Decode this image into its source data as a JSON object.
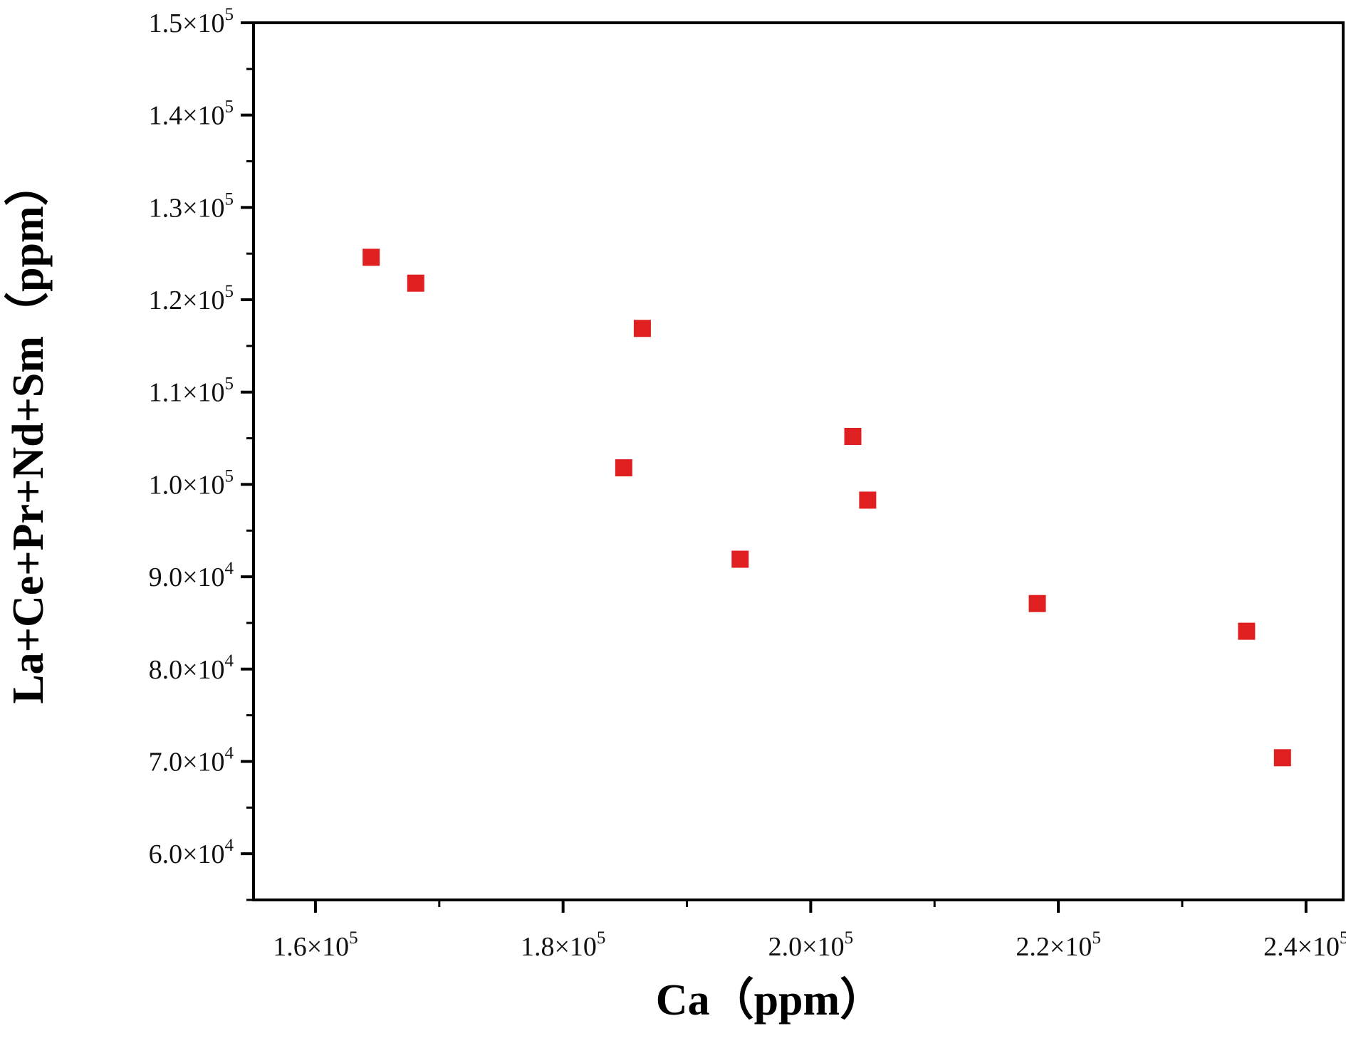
{
  "chart_data": {
    "type": "scatter",
    "xlabel": "Ca（ppm）",
    "ylabel": "La+Ce+Pr+Nd+Sm（ppm）",
    "xlim": [
      155000,
      243000
    ],
    "ylim": [
      55000,
      150000
    ],
    "x_ticks": [
      {
        "value": 160000,
        "mantissa": "1.6×10",
        "exp": "5"
      },
      {
        "value": 180000,
        "mantissa": "1.8×10",
        "exp": "5"
      },
      {
        "value": 200000,
        "mantissa": "2.0×10",
        "exp": "5"
      },
      {
        "value": 220000,
        "mantissa": "2.2×10",
        "exp": "5"
      },
      {
        "value": 240000,
        "mantissa": "2.4×10",
        "exp": "5"
      }
    ],
    "y_ticks": [
      {
        "value": 60000,
        "mantissa": "6.0×10",
        "exp": "4"
      },
      {
        "value": 70000,
        "mantissa": "7.0×10",
        "exp": "4"
      },
      {
        "value": 80000,
        "mantissa": "8.0×10",
        "exp": "4"
      },
      {
        "value": 90000,
        "mantissa": "9.0×10",
        "exp": "4"
      },
      {
        "value": 100000,
        "mantissa": "1.0×10",
        "exp": "5"
      },
      {
        "value": 110000,
        "mantissa": "1.1×10",
        "exp": "5"
      },
      {
        "value": 120000,
        "mantissa": "1.2×10",
        "exp": "5"
      },
      {
        "value": 130000,
        "mantissa": "1.3×10",
        "exp": "5"
      },
      {
        "value": 140000,
        "mantissa": "1.4×10",
        "exp": "5"
      },
      {
        "value": 150000,
        "mantissa": "1.5×10",
        "exp": "5"
      }
    ],
    "grid": false,
    "marker": "square",
    "marker_color": "#e02020",
    "series": [
      {
        "points": [
          {
            "x": 164500,
            "y": 124600
          },
          {
            "x": 168100,
            "y": 121800
          },
          {
            "x": 186400,
            "y": 116900
          },
          {
            "x": 184900,
            "y": 101800
          },
          {
            "x": 194300,
            "y": 91900
          },
          {
            "x": 203400,
            "y": 105200
          },
          {
            "x": 204600,
            "y": 98300
          },
          {
            "x": 218300,
            "y": 87100
          },
          {
            "x": 235200,
            "y": 84100
          },
          {
            "x": 238100,
            "y": 70400
          }
        ]
      }
    ]
  }
}
